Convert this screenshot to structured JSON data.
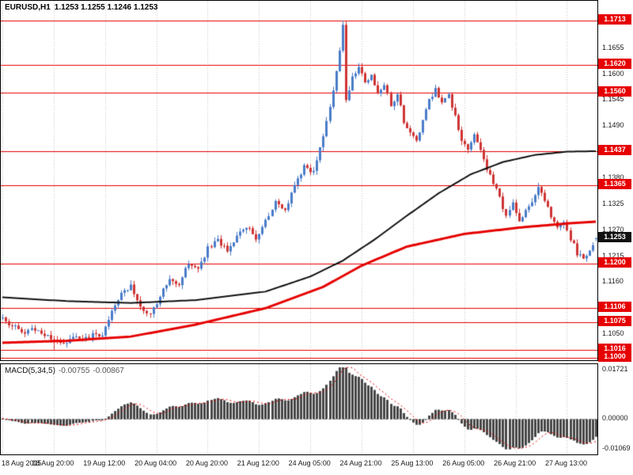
{
  "header": {
    "symbol_timeframe": "EURUSD,H1",
    "ohlc": "1.1253 1.1255 1.1246 1.1253"
  },
  "macd_panel": {
    "label": "MACD(5,34,5)",
    "value_main": "-0.00755",
    "value_signal": "-0.00867",
    "axis_ticks": [
      "0.01721",
      "0.00000",
      "-0.01069"
    ],
    "axis_values": [
      0.01721,
      0.0,
      -0.01069
    ]
  },
  "price_axis": {
    "ticks": [
      1.1655,
      1.16,
      1.1545,
      1.149,
      1.138,
      1.1325,
      1.127,
      1.1215,
      1.116,
      1.105
    ]
  },
  "levels": [
    1.1713,
    1.162,
    1.156,
    1.1437,
    1.1365,
    1.12,
    1.1106,
    1.1075,
    1.1016,
    1.1
  ],
  "current_price": "1.1253",
  "time_axis": {
    "labels": [
      "18 Aug 2015",
      "18 Aug 20:00",
      "19 Aug 12:00",
      "20 Aug 04:00",
      "20 Aug 20:00",
      "21 Aug 12:00",
      "24 Aug 05:00",
      "24 Aug 21:00",
      "25 Aug 13:00",
      "26 Aug 05:00",
      "26 Aug 21:00",
      "27 Aug 13:00"
    ],
    "candle_indices": [
      0,
      16,
      32,
      48,
      64,
      80,
      96,
      112,
      128,
      144,
      160,
      176
    ]
  },
  "colors": {
    "background": "#ffffff",
    "grid": "#c4c4c4",
    "bull": "#4a7cc9",
    "bear": "#cf3434",
    "level": "#e60000",
    "tag_bg": "#e60000",
    "current_tag_bg": "#111111",
    "ma_red": "#e60000",
    "ma_black": "#111111",
    "macd_bar": "#474747",
    "macd_signal": "#e60000",
    "zero_line": "#999999",
    "axis_text": "#1a1a1a"
  },
  "chart_data": {
    "type": "candlestick",
    "symbol": "EURUSD",
    "timeframe": "H1",
    "n_candles": 186,
    "price_min": 1.0995,
    "price_max": 1.1755,
    "close_waypoints": [
      [
        0,
        1.1082
      ],
      [
        3,
        1.107
      ],
      [
        6,
        1.1052
      ],
      [
        9,
        1.1066
      ],
      [
        12,
        1.1048
      ],
      [
        16,
        1.1038
      ],
      [
        19,
        1.103
      ],
      [
        22,
        1.1048
      ],
      [
        25,
        1.1036
      ],
      [
        28,
        1.1052
      ],
      [
        31,
        1.1044
      ],
      [
        34,
        1.1095
      ],
      [
        37,
        1.1138
      ],
      [
        40,
        1.1152
      ],
      [
        43,
        1.1108
      ],
      [
        46,
        1.1092
      ],
      [
        49,
        1.1132
      ],
      [
        52,
        1.1168
      ],
      [
        55,
        1.1152
      ],
      [
        58,
        1.1202
      ],
      [
        61,
        1.1188
      ],
      [
        64,
        1.1232
      ],
      [
        67,
        1.125
      ],
      [
        70,
        1.1224
      ],
      [
        73,
        1.1258
      ],
      [
        76,
        1.1278
      ],
      [
        79,
        1.1254
      ],
      [
        82,
        1.129
      ],
      [
        85,
        1.1328
      ],
      [
        88,
        1.1308
      ],
      [
        91,
        1.1368
      ],
      [
        94,
        1.1405
      ],
      [
        97,
        1.139
      ],
      [
        100,
        1.147
      ],
      [
        103,
        1.156
      ],
      [
        105,
        1.1645
      ],
      [
        106,
        1.17
      ],
      [
        107,
        1.155
      ],
      [
        109,
        1.159
      ],
      [
        111,
        1.1615
      ],
      [
        113,
        1.1585
      ],
      [
        115,
        1.1595
      ],
      [
        117,
        1.1558
      ],
      [
        119,
        1.1574
      ],
      [
        121,
        1.1536
      ],
      [
        123,
        1.1558
      ],
      [
        125,
        1.15
      ],
      [
        127,
        1.1478
      ],
      [
        129,
        1.1456
      ],
      [
        131,
        1.1502
      ],
      [
        133,
        1.1544
      ],
      [
        135,
        1.1568
      ],
      [
        137,
        1.154
      ],
      [
        139,
        1.1558
      ],
      [
        141,
        1.1508
      ],
      [
        143,
        1.1462
      ],
      [
        145,
        1.144
      ],
      [
        147,
        1.1468
      ],
      [
        149,
        1.1438
      ],
      [
        151,
        1.14
      ],
      [
        153,
        1.1368
      ],
      [
        155,
        1.1338
      ],
      [
        157,
        1.13
      ],
      [
        159,
        1.1328
      ],
      [
        161,
        1.1292
      ],
      [
        163,
        1.1312
      ],
      [
        165,
        1.133
      ],
      [
        167,
        1.1358
      ],
      [
        169,
        1.133
      ],
      [
        171,
        1.1302
      ],
      [
        173,
        1.1272
      ],
      [
        175,
        1.1286
      ],
      [
        177,
        1.1252
      ],
      [
        179,
        1.1222
      ],
      [
        181,
        1.121
      ],
      [
        183,
        1.1232
      ],
      [
        185,
        1.1253
      ]
    ],
    "spike": {
      "index": 106,
      "high": 1.1713
    },
    "low_anchor": {
      "index": 16,
      "low": 1.1016
    },
    "last_candle": {
      "open": 1.1253,
      "high": 1.1255,
      "low": 1.1246,
      "close": 1.1253
    },
    "ma_red": [
      [
        0,
        1.1032
      ],
      [
        20,
        1.1036
      ],
      [
        40,
        1.1045
      ],
      [
        60,
        1.107
      ],
      [
        82,
        1.1105
      ],
      [
        100,
        1.115
      ],
      [
        112,
        1.1195
      ],
      [
        126,
        1.1235
      ],
      [
        144,
        1.1262
      ],
      [
        162,
        1.1276
      ],
      [
        176,
        1.1284
      ],
      [
        185,
        1.1288
      ]
    ],
    "ma_black": [
      [
        0,
        1.1128
      ],
      [
        20,
        1.112
      ],
      [
        40,
        1.1116
      ],
      [
        60,
        1.1122
      ],
      [
        82,
        1.114
      ],
      [
        96,
        1.1172
      ],
      [
        106,
        1.1205
      ],
      [
        116,
        1.125
      ],
      [
        126,
        1.13
      ],
      [
        136,
        1.1348
      ],
      [
        146,
        1.1388
      ],
      [
        156,
        1.1414
      ],
      [
        166,
        1.1429
      ],
      [
        176,
        1.1436
      ],
      [
        185,
        1.1437
      ]
    ],
    "macd": {
      "fast": 5,
      "slow": 34,
      "signal": 5,
      "scale_max": 0.018,
      "scale_min": -0.0115
    },
    "noise": {
      "seed": 20150827,
      "amp": 0.00055,
      "wick": 0.0009
    }
  }
}
